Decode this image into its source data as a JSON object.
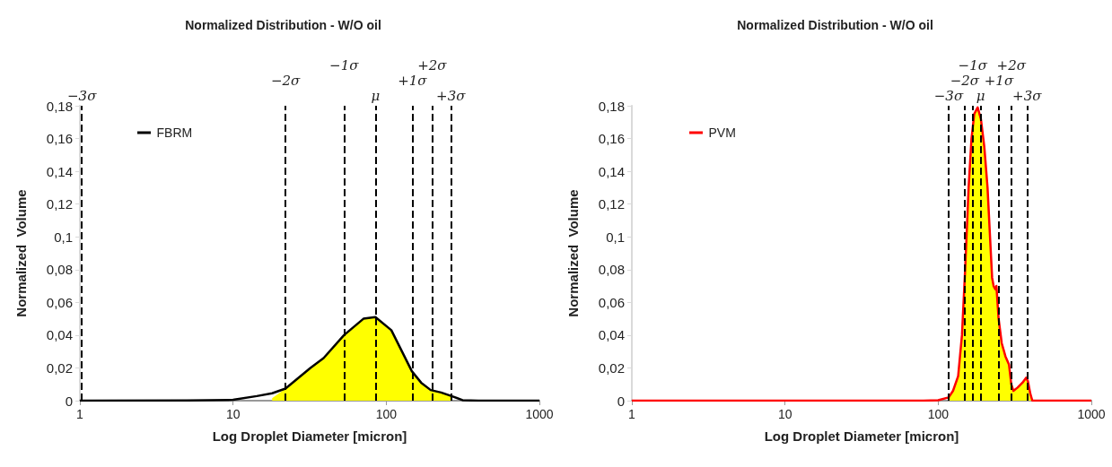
{
  "chart_data": [
    {
      "type": "line",
      "title": "Normalized Distribution - W/O oil",
      "xlabel": "Log Droplet Diameter [micron]",
      "ylabel": "Normalized  Volume",
      "log": "x",
      "xlim": [
        1,
        1000
      ],
      "xticks": [
        1,
        10,
        100,
        1000
      ],
      "ylim": [
        0,
        0.18
      ],
      "yticks": [
        {
          "value": 0,
          "label": "0"
        },
        {
          "value": 0.02,
          "label": "0,02"
        },
        {
          "value": 0.04,
          "label": "0,04"
        },
        {
          "value": 0.06,
          "label": "0,06"
        },
        {
          "value": 0.08,
          "label": "0,08"
        },
        {
          "value": 0.1,
          "label": "0,1"
        },
        {
          "value": 0.12,
          "label": "0,12"
        },
        {
          "value": 0.14,
          "label": "0,14"
        },
        {
          "value": 0.16,
          "label": "0,16"
        },
        {
          "value": 0.18,
          "label": "0,18"
        }
      ],
      "grid": false,
      "legend": "top left",
      "series": [
        {
          "type": "area",
          "color": "#ffff00",
          "x": [
            18,
            22,
            32,
            39,
            53,
            71,
            85,
            108,
            147,
            169,
            195,
            228,
            267
          ],
          "values": [
            0.0015,
            0.0074,
            0.02,
            0.026,
            0.04,
            0.05,
            0.051,
            0.043,
            0.018,
            0.011,
            0.0065,
            0.005,
            0.0028
          ]
        },
        {
          "type": "line",
          "name": "FBRM",
          "color": "#000000",
          "x": [
            1,
            5,
            10,
            14.3,
            18,
            22,
            32,
            39,
            53,
            71,
            85,
            108,
            147,
            169,
            195,
            228,
            267,
            315,
            400,
            1000
          ],
          "values": [
            0,
            0.0002,
            0.0005,
            0.0028,
            0.0045,
            0.0074,
            0.02,
            0.026,
            0.04,
            0.05,
            0.051,
            0.043,
            0.018,
            0.011,
            0.0065,
            0.005,
            0.0028,
            0.0003,
            0,
            0
          ]
        }
      ],
      "ref_lines": [
        {
          "axis": "x",
          "value": 1.03,
          "label": "−3σ",
          "color": "#000000",
          "line_style": "dashed"
        },
        {
          "axis": "x",
          "value": 22,
          "label": "−2σ",
          "color": "#000000",
          "line_style": "dashed"
        },
        {
          "axis": "x",
          "value": 53,
          "label": "−1σ",
          "color": "#000000",
          "line_style": "dashed"
        },
        {
          "axis": "x",
          "value": 85,
          "label": "μ",
          "color": "#000000",
          "line_style": "dashed"
        },
        {
          "axis": "x",
          "value": 148,
          "label": "+1σ",
          "color": "#000000",
          "line_style": "dashed"
        },
        {
          "axis": "x",
          "value": 199,
          "label": "+2σ",
          "color": "#000000",
          "line_style": "dashed"
        },
        {
          "axis": "x",
          "value": 264,
          "label": "+3σ",
          "color": "#000000",
          "line_style": "dashed"
        }
      ]
    },
    {
      "type": "line",
      "title": "Normalized Distribution - W/O oil",
      "xlabel": "Log Droplet Diameter [micron]",
      "ylabel": "Normalized  Volume",
      "log": "x",
      "xlim": [
        1,
        1000
      ],
      "xticks": [
        1,
        10,
        100,
        1000
      ],
      "ylim": [
        0,
        0.18
      ],
      "yticks": [
        {
          "value": 0,
          "label": "0"
        },
        {
          "value": 0.02,
          "label": "0,02"
        },
        {
          "value": 0.04,
          "label": "0,04"
        },
        {
          "value": 0.06,
          "label": "0,06"
        },
        {
          "value": 0.08,
          "label": "0,08"
        },
        {
          "value": 0.1,
          "label": "0,1"
        },
        {
          "value": 0.12,
          "label": "0,12"
        },
        {
          "value": 0.14,
          "label": "0,14"
        },
        {
          "value": 0.16,
          "label": "0,16"
        },
        {
          "value": 0.18,
          "label": "0,18"
        }
      ],
      "grid": false,
      "legend": "top left",
      "series": [
        {
          "type": "area",
          "color": "#ffff00",
          "x": [
            117,
            125,
            135,
            143,
            150,
            158,
            165,
            172,
            181,
            190,
            200,
            210,
            218,
            225,
            230,
            236,
            240,
            248,
            260,
            275,
            290,
            300,
            310,
            330,
            355,
            375,
            385,
            400,
            412
          ],
          "values": [
            0.002,
            0.006,
            0.015,
            0.04,
            0.08,
            0.13,
            0.16,
            0.175,
            0.179,
            0.172,
            0.155,
            0.13,
            0.1,
            0.075,
            0.07,
            0.068,
            0.07,
            0.05,
            0.035,
            0.027,
            0.022,
            0.01,
            0.006,
            0.008,
            0.011,
            0.014,
            0.012,
            0.004,
            0
          ]
        },
        {
          "type": "line",
          "name": "PVM",
          "color": "#ff0000",
          "x": [
            1,
            10,
            80,
            100,
            117,
            125,
            135,
            143,
            150,
            158,
            165,
            172,
            181,
            190,
            200,
            210,
            218,
            225,
            230,
            236,
            240,
            248,
            260,
            275,
            290,
            300,
            310,
            330,
            355,
            375,
            385,
            400,
            412,
            1000
          ],
          "values": [
            0,
            0,
            0,
            0.0003,
            0.002,
            0.006,
            0.015,
            0.04,
            0.08,
            0.13,
            0.16,
            0.175,
            0.179,
            0.172,
            0.155,
            0.13,
            0.1,
            0.075,
            0.07,
            0.068,
            0.07,
            0.05,
            0.035,
            0.027,
            0.022,
            0.01,
            0.006,
            0.008,
            0.011,
            0.014,
            0.012,
            0.004,
            0,
            0
          ]
        }
      ],
      "ref_lines": [
        {
          "axis": "x",
          "value": 117,
          "label": "−3σ",
          "color": "#000000",
          "line_style": "dashed"
        },
        {
          "axis": "x",
          "value": 149,
          "label": "−2σ",
          "color": "#000000",
          "line_style": "dashed"
        },
        {
          "axis": "x",
          "value": 168,
          "label": "−1σ",
          "color": "#000000",
          "line_style": "dashed"
        },
        {
          "axis": "x",
          "value": 189,
          "label": "μ",
          "color": "#000000",
          "line_style": "dashed"
        },
        {
          "axis": "x",
          "value": 249,
          "label": "+1σ",
          "color": "#000000",
          "line_style": "dashed"
        },
        {
          "axis": "x",
          "value": 300,
          "label": "+2σ",
          "color": "#000000",
          "line_style": "dashed"
        },
        {
          "axis": "x",
          "value": 380,
          "label": "+3σ",
          "color": "#000000",
          "line_style": "dashed"
        }
      ]
    }
  ]
}
